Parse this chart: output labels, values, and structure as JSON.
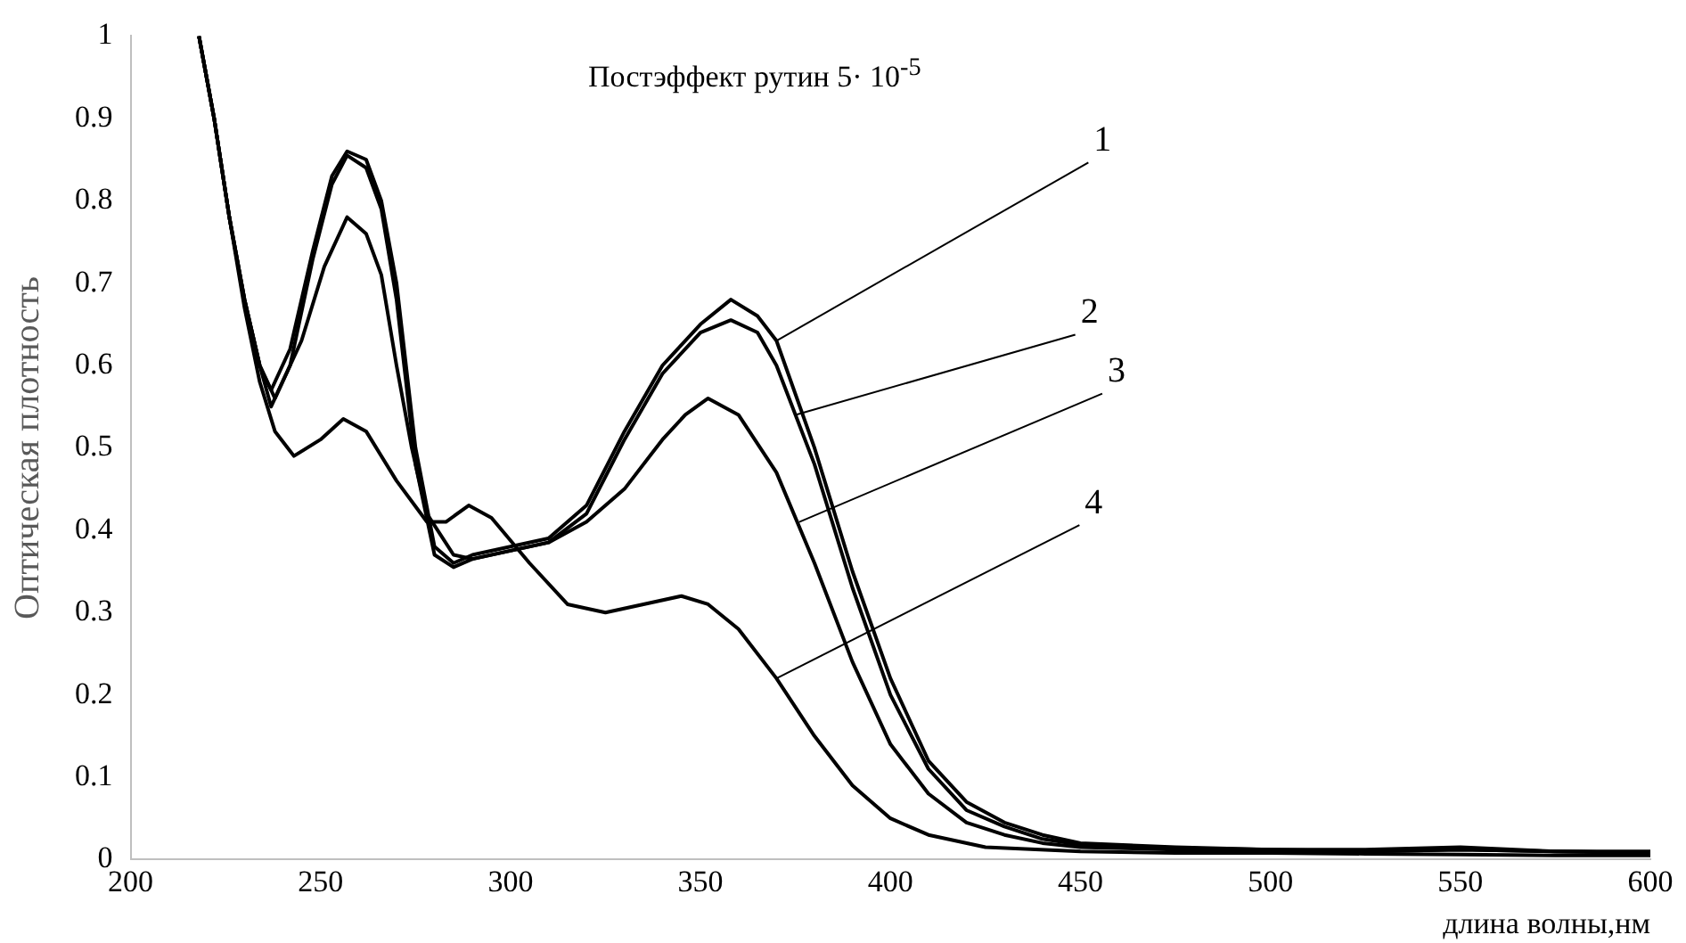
{
  "chart_data": {
    "type": "line",
    "title": "Постэффект рутин 5· 10$^{-5}$",
    "xlabel": "длина волны,нм",
    "ylabel": "Оптическая плотность",
    "xlim": [
      200,
      600
    ],
    "xticks": [
      200,
      250,
      300,
      350,
      400,
      450,
      500,
      550,
      600
    ],
    "ylim": [
      0,
      1
    ],
    "yticks": [
      0,
      0.1,
      0.2,
      0.3,
      0.4,
      0.5,
      0.6,
      0.7,
      0.8,
      0.9,
      1
    ],
    "grid": false,
    "legend": false,
    "marker": "none",
    "line_style": "solid",
    "annotations": [
      {
        "text": "1",
        "x": 370,
        "y": 0.63
      },
      {
        "text": "2",
        "x": 375,
        "y": 0.54
      },
      {
        "text": "3",
        "x": 376,
        "y": 0.41
      },
      {
        "text": "4",
        "x": 370,
        "y": 0.22
      }
    ],
    "series": [
      {
        "color": "#000000",
        "x": [
          218,
          222,
          226,
          230,
          234,
          237,
          242,
          248,
          253,
          257,
          262,
          266,
          270,
          275,
          280,
          285,
          290,
          300,
          310,
          320,
          330,
          340,
          350,
          358,
          365,
          370,
          380,
          390,
          400,
          410,
          420,
          430,
          440,
          450,
          475,
          500,
          525,
          550,
          575,
          600
        ],
        "values": [
          1.0,
          0.9,
          0.78,
          0.68,
          0.6,
          0.57,
          0.62,
          0.74,
          0.83,
          0.86,
          0.85,
          0.8,
          0.7,
          0.5,
          0.38,
          0.36,
          0.37,
          0.38,
          0.39,
          0.43,
          0.52,
          0.6,
          0.65,
          0.68,
          0.66,
          0.63,
          0.5,
          0.35,
          0.22,
          0.12,
          0.07,
          0.045,
          0.03,
          0.02,
          0.015,
          0.012,
          0.012,
          0.015,
          0.01,
          0.01
        ]
      },
      {
        "color": "#000000",
        "x": [
          218,
          222,
          226,
          230,
          234,
          237,
          242,
          248,
          253,
          257,
          262,
          266,
          270,
          275,
          280,
          285,
          290,
          300,
          310,
          320,
          330,
          340,
          350,
          358,
          365,
          370,
          380,
          390,
          400,
          410,
          420,
          430,
          440,
          450,
          475,
          500,
          525,
          550,
          575,
          600
        ],
        "values": [
          1.0,
          0.9,
          0.78,
          0.68,
          0.6,
          0.55,
          0.6,
          0.73,
          0.82,
          0.855,
          0.84,
          0.79,
          0.68,
          0.48,
          0.37,
          0.355,
          0.365,
          0.375,
          0.385,
          0.42,
          0.51,
          0.59,
          0.64,
          0.655,
          0.64,
          0.6,
          0.48,
          0.33,
          0.2,
          0.11,
          0.06,
          0.04,
          0.025,
          0.018,
          0.014,
          0.012,
          0.01,
          0.012,
          0.01,
          0.008
        ]
      },
      {
        "color": "#000000",
        "x": [
          218,
          222,
          226,
          230,
          234,
          238,
          245,
          251,
          257,
          262,
          266,
          270,
          274,
          278,
          285,
          290,
          300,
          310,
          320,
          330,
          340,
          346,
          352,
          360,
          370,
          380,
          390,
          400,
          410,
          420,
          430,
          440,
          450,
          475,
          500,
          525,
          550,
          575,
          600
        ],
        "values": [
          1.0,
          0.9,
          0.78,
          0.68,
          0.6,
          0.56,
          0.63,
          0.72,
          0.78,
          0.76,
          0.71,
          0.6,
          0.5,
          0.42,
          0.37,
          0.365,
          0.375,
          0.385,
          0.41,
          0.45,
          0.51,
          0.54,
          0.56,
          0.54,
          0.47,
          0.36,
          0.24,
          0.14,
          0.08,
          0.045,
          0.03,
          0.02,
          0.015,
          0.012,
          0.01,
          0.01,
          0.012,
          0.01,
          0.008
        ]
      },
      {
        "color": "#000000",
        "x": [
          218,
          222,
          226,
          230,
          234,
          238,
          243,
          250,
          256,
          262,
          270,
          278,
          283,
          289,
          295,
          305,
          315,
          325,
          335,
          345,
          352,
          360,
          370,
          380,
          390,
          400,
          410,
          425,
          450,
          475,
          500,
          525,
          550,
          575,
          600
        ],
        "values": [
          1.0,
          0.9,
          0.78,
          0.67,
          0.58,
          0.52,
          0.49,
          0.51,
          0.535,
          0.52,
          0.46,
          0.41,
          0.41,
          0.43,
          0.415,
          0.36,
          0.31,
          0.3,
          0.31,
          0.32,
          0.31,
          0.28,
          0.22,
          0.15,
          0.09,
          0.05,
          0.03,
          0.015,
          0.01,
          0.008,
          0.008,
          0.007,
          0.006,
          0.005,
          0.005
        ]
      }
    ]
  }
}
